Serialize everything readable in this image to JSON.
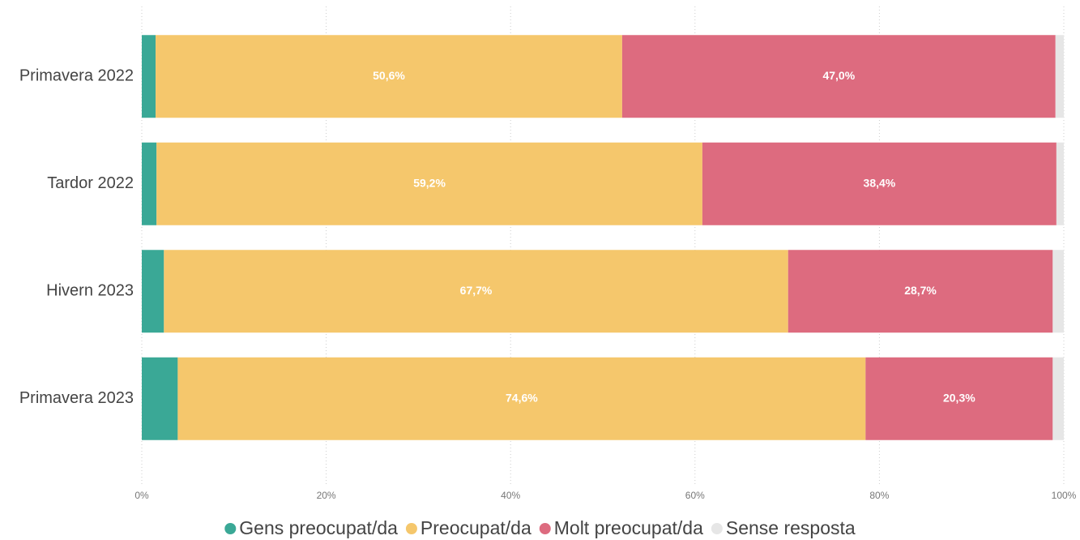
{
  "chart_data": {
    "type": "stacked_barh",
    "categories": [
      "Primavera 2022",
      "Tardor 2022",
      "Hivern 2023",
      "Primavera 2023"
    ],
    "series": [
      {
        "name": "Gens preocupat/da",
        "color": "#3aa896",
        "values": [
          1.5,
          1.6,
          2.4,
          3.9
        ]
      },
      {
        "name": "Preocupat/da",
        "color": "#f5c76c",
        "values": [
          50.6,
          59.2,
          67.7,
          74.6
        ],
        "value_labels": [
          "50,6%",
          "59,2%",
          "67,7%",
          "74,6%"
        ]
      },
      {
        "name": "Molt preocupat/da",
        "color": "#dd6b7f",
        "values": [
          47.0,
          38.4,
          28.7,
          20.3
        ],
        "value_labels": [
          "47,0%",
          "38,4%",
          "28,7%",
          "20,3%"
        ]
      },
      {
        "name": "Sense resposta",
        "color": "#e6e6e6",
        "values": [
          0.9,
          0.8,
          1.2,
          1.2
        ]
      }
    ],
    "xlim": [
      0,
      100
    ],
    "xticks": [
      {
        "value": 0,
        "label": "0%"
      },
      {
        "value": 20,
        "label": "20%"
      },
      {
        "value": 40,
        "label": "40%"
      },
      {
        "value": 60,
        "label": "60%"
      },
      {
        "value": 80,
        "label": "80%"
      },
      {
        "value": 100,
        "label": "100%"
      }
    ],
    "grid": true,
    "legend": "bottom"
  }
}
